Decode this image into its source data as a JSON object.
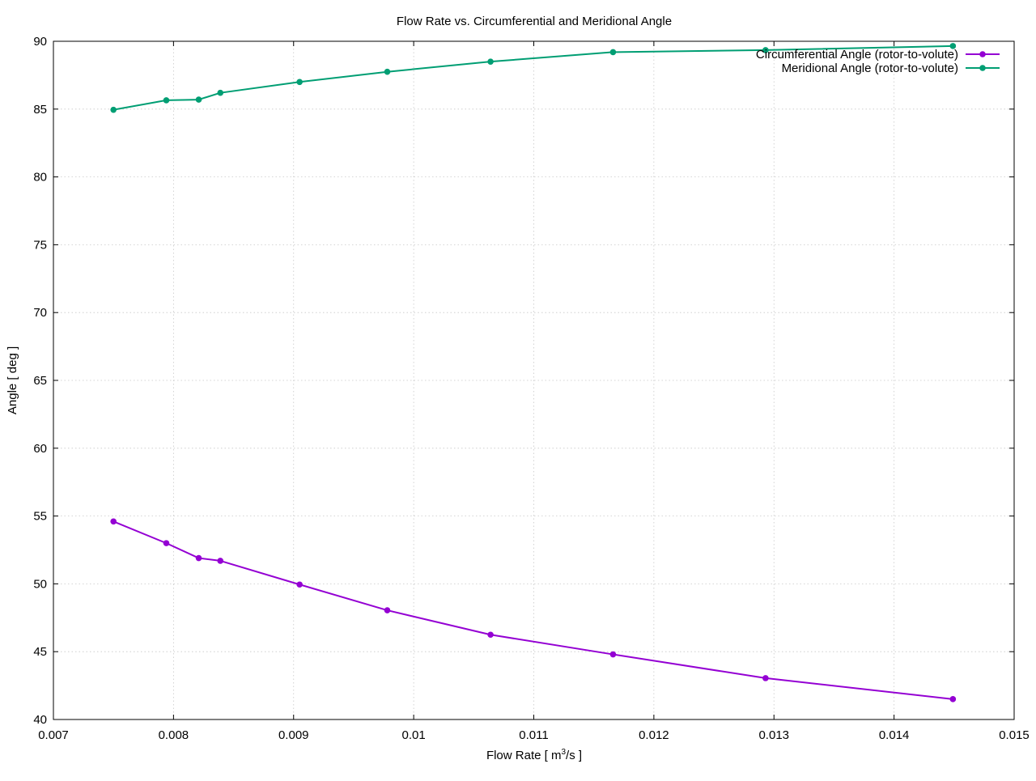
{
  "chart_data": {
    "type": "line",
    "title": "Flow Rate vs. Circumferential and Meridional Angle",
    "xlabel_main": "Flow Rate [ m",
    "xlabel_sup": "3",
    "xlabel_tail": "/s ]",
    "ylabel": "Angle [ deg ]",
    "xlim": [
      0.007,
      0.015
    ],
    "ylim": [
      40,
      90
    ],
    "grid": true,
    "legend_position": "top-right",
    "x_ticks": [
      0.007,
      0.008,
      0.009,
      0.01,
      0.011,
      0.012,
      0.013,
      0.014,
      0.015
    ],
    "x_tick_labels": [
      "0.007",
      "0.008",
      "0.009",
      "0.01",
      "0.011",
      "0.012",
      "0.013",
      "0.014",
      "0.015"
    ],
    "y_ticks": [
      40,
      45,
      50,
      55,
      60,
      65,
      70,
      75,
      80,
      85,
      90
    ],
    "y_tick_labels": [
      "40",
      "45",
      "50",
      "55",
      "60",
      "65",
      "70",
      "75",
      "80",
      "85",
      "90"
    ],
    "x": [
      0.0075,
      0.00794,
      0.00821,
      0.00839,
      0.00905,
      0.00978,
      0.01064,
      0.01166,
      0.01293,
      0.01449
    ],
    "series": [
      {
        "name": "Circumferential Angle (rotor-to-volute)",
        "color": "#9400d3",
        "values": [
          54.6,
          53.0,
          51.9,
          51.7,
          49.95,
          48.05,
          46.25,
          44.8,
          43.05,
          41.5
        ]
      },
      {
        "name": "Meridional Angle (rotor-to-volute)",
        "color": "#009e73",
        "values": [
          84.95,
          85.65,
          85.7,
          86.2,
          87.0,
          87.75,
          88.5,
          89.2,
          89.35,
          89.65
        ]
      }
    ]
  }
}
